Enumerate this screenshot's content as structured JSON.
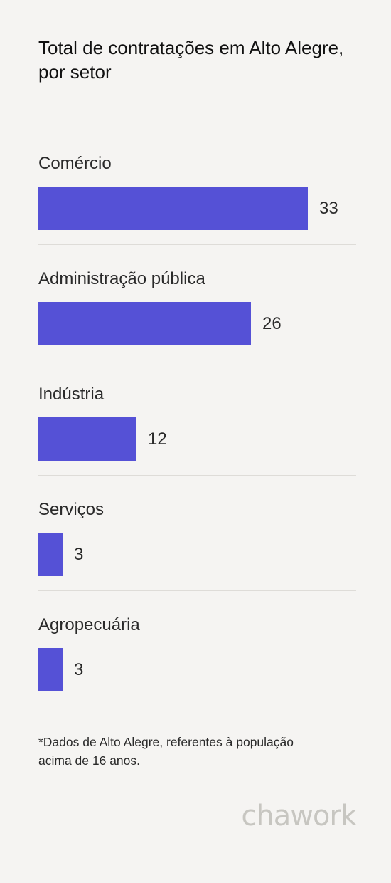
{
  "chart_data": {
    "type": "bar",
    "orientation": "horizontal",
    "title": "Total de contratações em Alto Alegre, por setor",
    "categories": [
      "Comércio",
      "Administração pública",
      "Indústria",
      "Serviços",
      "Agropecuária"
    ],
    "values": [
      33,
      26,
      12,
      3,
      3
    ],
    "value_labels": [
      "33",
      "26",
      "12",
      "3",
      "3"
    ],
    "bar_color": "#5551d6",
    "grid": false,
    "legend": "none"
  },
  "footnote": "*Dados de Alto Alegre, referentes à população acima de 16 anos.",
  "brand": "chawork",
  "colors": {
    "background": "#f5f4f2",
    "bar": "#5551d6",
    "logo": "#c7c6c1"
  }
}
